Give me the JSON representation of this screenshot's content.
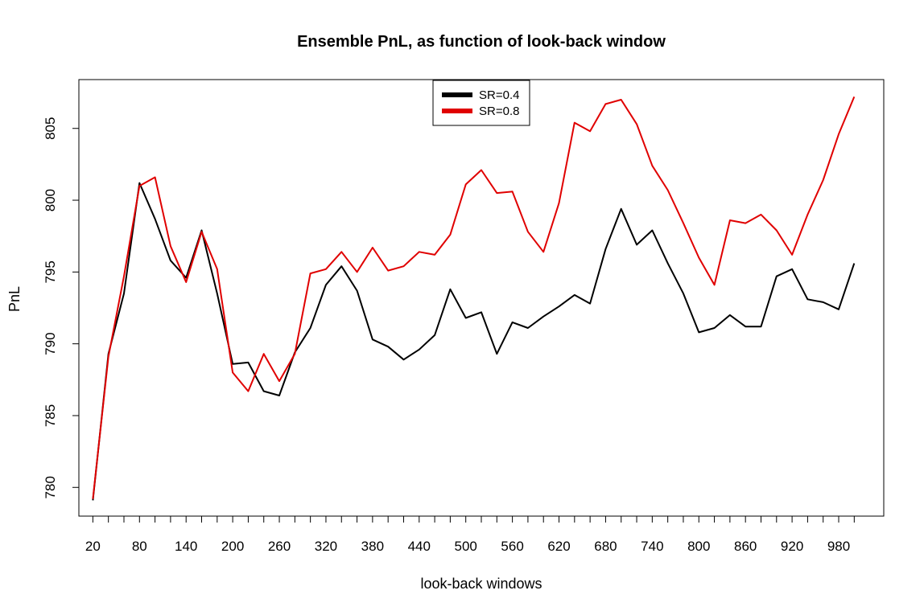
{
  "chart_data": {
    "type": "line",
    "title": "Ensemble PnL, as function of look-back window",
    "xlabel": "look-back windows",
    "ylabel": "PnL",
    "ylim": [
      778.0,
      808.4
    ],
    "xlim": [
      2,
      1038
    ],
    "x_ticks": [
      20,
      40,
      60,
      80,
      100,
      120,
      140,
      160,
      180,
      200,
      220,
      240,
      260,
      280,
      300,
      320,
      340,
      360,
      380,
      400,
      420,
      440,
      460,
      480,
      500,
      520,
      540,
      560,
      580,
      600,
      620,
      640,
      660,
      680,
      700,
      720,
      740,
      760,
      780,
      800,
      820,
      840,
      860,
      880,
      900,
      920,
      940,
      960,
      980,
      1000
    ],
    "x_tick_labels": [
      "20",
      "80",
      "140",
      "200",
      "260",
      "320",
      "380",
      "440",
      "500",
      "560",
      "620",
      "680",
      "740",
      "800",
      "860",
      "920",
      "980"
    ],
    "y_ticks": [
      780,
      785,
      790,
      795,
      800,
      805
    ],
    "y_tick_labels": [
      "780",
      "785",
      "790",
      "795",
      "800",
      "805"
    ],
    "grid": false,
    "legend_position": "top-center",
    "x": [
      20,
      40,
      60,
      80,
      100,
      120,
      140,
      160,
      180,
      200,
      220,
      240,
      260,
      280,
      300,
      320,
      340,
      360,
      380,
      400,
      420,
      440,
      460,
      480,
      500,
      520,
      540,
      560,
      580,
      600,
      620,
      640,
      660,
      680,
      700,
      720,
      740,
      760,
      780,
      800,
      820,
      840,
      860,
      880,
      900,
      920,
      940,
      960,
      980,
      1000
    ],
    "series": [
      {
        "name": "SR=0.4",
        "color": "#000000",
        "values": [
          779.1,
          789.3,
          793.5,
          801.2,
          798.7,
          795.8,
          794.6,
          797.9,
          793.5,
          788.6,
          788.7,
          786.7,
          786.4,
          789.4,
          791.1,
          794.1,
          795.4,
          793.7,
          790.3,
          789.8,
          788.9,
          789.6,
          790.6,
          793.8,
          791.8,
          792.2,
          789.3,
          791.5,
          791.1,
          791.9,
          792.6,
          793.4,
          792.8,
          796.6,
          799.4,
          796.9,
          797.9,
          795.6,
          793.5,
          790.8,
          791.1,
          792.0,
          791.2,
          791.2,
          794.7,
          795.2,
          793.1,
          792.9,
          792.4,
          795.6
        ]
      },
      {
        "name": "SR=0.8",
        "color": "#e00000",
        "values": [
          779.2,
          789.1,
          794.7,
          801.0,
          801.6,
          796.8,
          794.3,
          797.8,
          795.2,
          788.0,
          786.7,
          789.3,
          787.4,
          789.3,
          794.9,
          795.2,
          796.4,
          795.0,
          796.7,
          795.1,
          795.4,
          796.4,
          796.2,
          797.6,
          801.1,
          802.1,
          800.5,
          800.6,
          797.8,
          796.4,
          799.8,
          805.4,
          804.8,
          806.7,
          807.0,
          805.3,
          802.4,
          800.7,
          798.4,
          796.0,
          794.1,
          798.6,
          798.4,
          799.0,
          797.9,
          796.2,
          799.0,
          801.4,
          804.6,
          807.2
        ]
      }
    ]
  }
}
